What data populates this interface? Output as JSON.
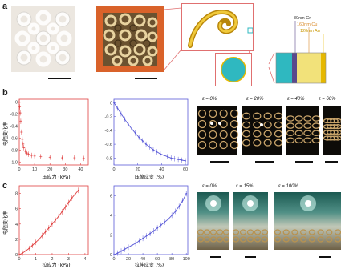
{
  "panels": {
    "a": "a",
    "b": "b",
    "c": "c"
  },
  "schematic": {
    "layers": [
      "30nm Cr",
      "160nm Cu",
      "120nm Au"
    ],
    "colors": {
      "cu_layer": "#d98b2b",
      "au_layer": "#e6b800",
      "substrate": "#c8e05a",
      "core": "#2fb8c0",
      "frame": "#e07070",
      "cr_line": "#5a4a8c"
    }
  },
  "panel_b": {
    "left_plot": {
      "ylabel": "电阻变化率",
      "xlabel": "压应力 (kPa)",
      "color": "#e04040",
      "xticks": [
        "0",
        "10",
        "20",
        "30",
        "40"
      ],
      "yticks": [
        "0",
        "-0.2",
        "-0.4",
        "-0.6",
        "-0.8",
        "-1.0"
      ]
    },
    "right_plot": {
      "xlabel": "压缩应变 (%)",
      "color": "#5a5ad8",
      "xticks": [
        "0",
        "20",
        "40",
        "60"
      ],
      "yticks": [
        "0",
        "-0.2",
        "-0.4",
        "-0.6",
        "-0.8"
      ]
    },
    "photo_captions": [
      "ε = 0%",
      "ε = 20%",
      "ε = 40%",
      "ε = 60%"
    ]
  },
  "panel_c": {
    "left_plot": {
      "ylabel": "电阻变化率",
      "xlabel": "拉应力 (kPa)",
      "color": "#e04040",
      "xticks": [
        "0",
        "1",
        "2",
        "3",
        "4"
      ],
      "yticks": [
        "0",
        "2",
        "4",
        "6",
        "8"
      ]
    },
    "right_plot": {
      "xlabel": "拉伸应变 (%)",
      "color": "#5a5ad8",
      "xticks": [
        "0",
        "20",
        "40",
        "60",
        "80",
        "100"
      ],
      "yticks": [
        "0",
        "2",
        "4",
        "6"
      ]
    },
    "photo_captions": [
      "ε = 0%",
      "ε = 15%",
      "ε = 100%"
    ]
  },
  "chart_data": [
    {
      "type": "scatter",
      "panel": "b-left",
      "xlabel": "压应力 (kPa)",
      "ylabel": "电阻变化率",
      "xlim": [
        0,
        45
      ],
      "ylim": [
        -1.05,
        0.05
      ],
      "series": [
        {
          "x": [
            0,
            0.3,
            0.6,
            1,
            1.5,
            2,
            2.5,
            3,
            4,
            5,
            6,
            8,
            10,
            14,
            20,
            28,
            36,
            42
          ],
          "y": [
            0,
            -0.08,
            -0.18,
            -0.32,
            -0.5,
            -0.62,
            -0.7,
            -0.76,
            -0.82,
            -0.85,
            -0.87,
            -0.89,
            -0.9,
            -0.91,
            -0.92,
            -0.93,
            -0.93,
            -0.94
          ]
        }
      ]
    },
    {
      "type": "line",
      "panel": "b-right",
      "xlabel": "压缩应变 (%)",
      "xlim": [
        0,
        62
      ],
      "ylim": [
        -0.9,
        0.05
      ],
      "series": [
        {
          "x": [
            0,
            3,
            6,
            9,
            12,
            15,
            18,
            21,
            24,
            27,
            30,
            33,
            36,
            39,
            42,
            45,
            48,
            51,
            54,
            57,
            60
          ],
          "y": [
            0,
            -0.08,
            -0.16,
            -0.24,
            -0.31,
            -0.38,
            -0.44,
            -0.5,
            -0.55,
            -0.6,
            -0.64,
            -0.68,
            -0.71,
            -0.74,
            -0.76,
            -0.78,
            -0.8,
            -0.81,
            -0.82,
            -0.83,
            -0.84
          ]
        }
      ]
    },
    {
      "type": "line",
      "panel": "c-left",
      "xlabel": "拉应力 (kPa)",
      "ylabel": "电阻变化率",
      "xlim": [
        0,
        4.2
      ],
      "ylim": [
        0,
        9
      ],
      "series": [
        {
          "x": [
            0,
            0.2,
            0.4,
            0.6,
            0.8,
            1.0,
            1.2,
            1.4,
            1.6,
            1.8,
            2.0,
            2.2,
            2.4,
            2.6,
            2.8,
            3.0,
            3.2,
            3.4,
            3.6
          ],
          "y": [
            0,
            0.2,
            0.5,
            0.8,
            1.2,
            1.6,
            2.0,
            2.5,
            3.0,
            3.5,
            4.0,
            4.5,
            5.0,
            5.6,
            6.2,
            6.8,
            7.4,
            7.9,
            8.4
          ]
        }
      ]
    },
    {
      "type": "line",
      "panel": "c-right",
      "xlabel": "拉伸应变 (%)",
      "xlim": [
        0,
        102
      ],
      "ylim": [
        0,
        7
      ],
      "series": [
        {
          "x": [
            0,
            5,
            10,
            15,
            20,
            25,
            30,
            35,
            40,
            45,
            50,
            55,
            60,
            65,
            70,
            75,
            80,
            85,
            90,
            95,
            100
          ],
          "y": [
            0,
            0.15,
            0.35,
            0.55,
            0.75,
            0.95,
            1.15,
            1.4,
            1.65,
            1.9,
            2.15,
            2.4,
            2.7,
            3.0,
            3.3,
            3.6,
            4.0,
            4.4,
            4.9,
            5.5,
            6.2
          ]
        }
      ]
    }
  ]
}
